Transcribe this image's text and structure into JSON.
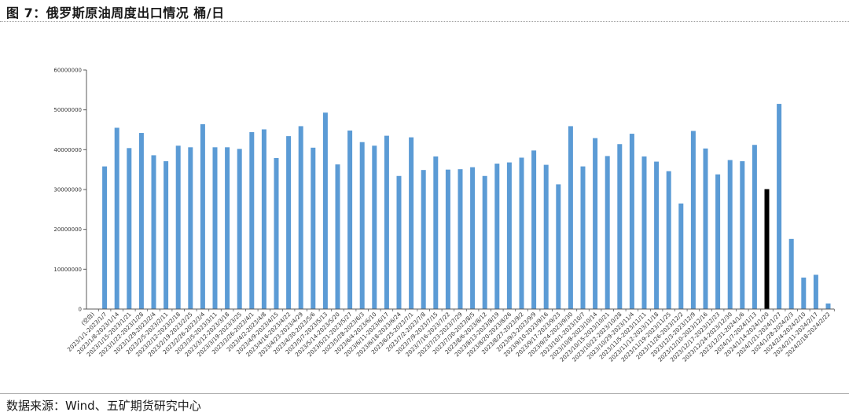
{
  "header": {
    "title": "图 7：俄罗斯原油周度出口情况  桶/日"
  },
  "footer": {
    "source": "数据来源：Wind、五矿期货研究中心"
  },
  "chart_data": {
    "type": "bar",
    "title": "",
    "xlabel": "",
    "ylabel": "",
    "ylim": [
      0,
      60000000
    ],
    "yticks": [
      0,
      10000000,
      20000000,
      30000000,
      40000000,
      50000000,
      60000000
    ],
    "ytick_labels": [
      "0",
      "10000000",
      "20000000",
      "30000000",
      "40000000",
      "50000000",
      "60000000"
    ],
    "grid": false,
    "legend": "none",
    "colors": {
      "bar": "#5b9bd5",
      "highlight": "#000000",
      "axis": "#595959"
    },
    "highlight_category": "2024/1/14-2024/1/20",
    "categories": [
      "(空白)",
      "2023/1/1-2023/1/7",
      "2023/1/8-2023/1/14",
      "2023/1/15-2023/1/21",
      "2023/1/22-2023/1/28",
      "2023/1/29-2023/2/4",
      "2023/2/5-2023/2/11",
      "2023/2/12-2023/2/18",
      "2023/2/19-2023/2/25",
      "2023/2/26-2023/3/4",
      "2023/3/5-2023/3/11",
      "2023/3/12-2023/3/18",
      "2023/3/19-2023/3/25",
      "2023/3/26-2023/4/1",
      "2023/4/2-2023/4/8",
      "2023/4/9-2023/4/15",
      "2023/4/16-2023/4/22",
      "2023/4/23-2023/4/29",
      "2023/4/30-2023/5/6",
      "2023/5/7-2023/5/13",
      "2023/5/14-2023/5/20",
      "2023/5/21-2023/5/27",
      "2023/5/28-2023/6/3",
      "2023/6/4-2023/6/10",
      "2023/6/11-2023/6/17",
      "2023/6/18-2023/6/24",
      "2023/6/25-2023/7/1",
      "2023/7/2-2023/7/8",
      "2023/7/9-2023/7/15",
      "2023/7/16-2023/7/22",
      "2023/7/23-2023/7/29",
      "2023/7/30-2023/8/5",
      "2023/8/6-2023/8/12",
      "2023/8/13-2023/8/19",
      "2023/8/20-2023/8/26",
      "2023/8/27-2023/9/2",
      "2023/9/3-2023/9/9",
      "2023/9/10-2023/9/16",
      "2023/9/17-2023/9/23",
      "2023/9/24-2023/9/30",
      "2023/10/1-2023/10/7",
      "2023/10/8-2023/10/14",
      "2023/10/15-2023/10/21",
      "2023/10/22-2023/10/28",
      "2023/10/29-2023/11/4",
      "2023/11/5-2023/11/11",
      "2023/11/12-2023/11/18",
      "2023/11/19-2023/11/25",
      "2023/11/26-2023/12/2",
      "2023/12/3-2023/12/9",
      "2023/12/10-2023/12/16",
      "2023/12/17-2023/12/23",
      "2023/12/24-2023/12/30",
      "2023/12/31-2024/1/6",
      "2024/1/7-2024/1/13",
      "2024/1/14-2024/1/20",
      "2024/1/21-2024/1/27",
      "2024/1/28-2024/2/3",
      "2024/2/4-2024/2/10",
      "2024/2/11-2024/2/17",
      "2024/2/18-2024/2/22"
    ],
    "values": [
      null,
      35800000,
      45500000,
      40400000,
      44200000,
      38600000,
      37100000,
      41000000,
      40600000,
      46400000,
      40600000,
      40600000,
      40200000,
      44400000,
      45100000,
      37900000,
      43400000,
      45900000,
      40500000,
      49300000,
      36300000,
      44800000,
      41900000,
      41000000,
      43500000,
      33400000,
      43100000,
      34900000,
      38300000,
      35000000,
      35100000,
      35600000,
      33400000,
      36500000,
      36800000,
      38000000,
      39800000,
      36200000,
      31300000,
      45900000,
      35800000,
      42900000,
      38400000,
      41400000,
      44000000,
      38300000,
      37000000,
      34600000,
      26500000,
      44700000,
      40300000,
      33800000,
      37400000,
      37100000,
      41200000,
      30100000,
      51500000,
      17600000,
      7900000,
      8600000,
      1400000
    ]
  }
}
